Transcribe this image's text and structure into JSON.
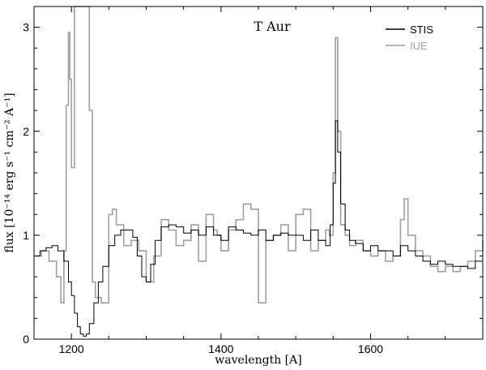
{
  "chart_data": {
    "type": "line",
    "title": "T Aur",
    "xlabel": "wavelength [A]",
    "ylabel": "flux [10⁻¹⁴ erg s⁻¹ cm⁻² A⁻¹]",
    "xlim": [
      1150,
      1750
    ],
    "ylim": [
      0,
      3.2
    ],
    "x_ticks": [
      1200,
      1400,
      1600
    ],
    "y_ticks": [
      0,
      1,
      2,
      3
    ],
    "legend_position": "top-right",
    "grid": false,
    "step": true,
    "series": [
      {
        "name": "STIS",
        "color": "#000000",
        "x": [
          1150,
          1158,
          1166,
          1174,
          1182,
          1190,
          1196,
          1200,
          1204,
          1208,
          1212,
          1216,
          1220,
          1224,
          1230,
          1236,
          1242,
          1250,
          1258,
          1266,
          1274,
          1282,
          1288,
          1294,
          1300,
          1306,
          1312,
          1320,
          1330,
          1340,
          1350,
          1360,
          1370,
          1380,
          1390,
          1400,
          1410,
          1420,
          1430,
          1440,
          1450,
          1460,
          1470,
          1480,
          1490,
          1500,
          1510,
          1520,
          1530,
          1540,
          1546,
          1550,
          1553,
          1556,
          1560,
          1566,
          1572,
          1580,
          1590,
          1600,
          1610,
          1620,
          1630,
          1640,
          1650,
          1660,
          1670,
          1680,
          1690,
          1700,
          1710,
          1720,
          1730,
          1740,
          1750
        ],
        "y": [
          0.8,
          0.85,
          0.88,
          0.9,
          0.85,
          0.75,
          0.55,
          0.42,
          0.25,
          0.12,
          0.05,
          0.03,
          0.05,
          0.15,
          0.35,
          0.55,
          0.7,
          0.9,
          1.0,
          1.05,
          1.05,
          0.98,
          0.8,
          0.6,
          0.55,
          0.72,
          0.95,
          1.08,
          1.1,
          1.08,
          1.02,
          1.05,
          1.0,
          1.08,
          1.0,
          0.95,
          1.08,
          1.05,
          1.02,
          1.0,
          1.05,
          0.95,
          1.0,
          1.02,
          1.0,
          1.0,
          0.95,
          1.05,
          0.95,
          0.9,
          1.1,
          1.5,
          2.1,
          1.8,
          1.3,
          1.05,
          0.95,
          0.92,
          0.85,
          0.9,
          0.85,
          0.85,
          0.8,
          0.9,
          0.85,
          0.8,
          0.75,
          0.72,
          0.75,
          0.72,
          0.7,
          0.7,
          0.68,
          0.75,
          0.8
        ]
      },
      {
        "name": "IUE",
        "color": "#a0a0a0",
        "x": [
          1150,
          1160,
          1170,
          1180,
          1186,
          1190,
          1193,
          1196,
          1198,
          1200,
          1204,
          1208,
          1212,
          1216,
          1220,
          1224,
          1228,
          1232,
          1240,
          1250,
          1255,
          1260,
          1270,
          1280,
          1290,
          1300,
          1310,
          1320,
          1330,
          1340,
          1350,
          1360,
          1370,
          1380,
          1390,
          1395,
          1400,
          1410,
          1420,
          1430,
          1440,
          1450,
          1460,
          1470,
          1480,
          1490,
          1500,
          1510,
          1520,
          1530,
          1540,
          1545,
          1550,
          1553,
          1556,
          1560,
          1566,
          1572,
          1580,
          1590,
          1600,
          1610,
          1620,
          1630,
          1640,
          1645,
          1650,
          1660,
          1670,
          1680,
          1690,
          1700,
          1710,
          1720,
          1730,
          1740,
          1750
        ],
        "y": [
          0.8,
          0.85,
          0.75,
          0.6,
          0.35,
          0.85,
          2.25,
          2.95,
          2.5,
          1.65,
          3.3,
          3.3,
          3.3,
          3.3,
          3.3,
          2.2,
          0.55,
          0.4,
          0.35,
          1.2,
          1.25,
          1.1,
          0.9,
          0.95,
          0.85,
          0.55,
          0.8,
          1.15,
          1.05,
          0.9,
          0.95,
          1.1,
          0.75,
          1.2,
          1.05,
          1.0,
          0.85,
          1.05,
          1.15,
          1.3,
          1.25,
          0.35,
          0.95,
          1.0,
          1.1,
          0.85,
          1.2,
          1.25,
          0.85,
          0.95,
          1.05,
          1.0,
          1.6,
          2.9,
          2.0,
          1.1,
          1.0,
          0.9,
          0.95,
          0.85,
          0.8,
          0.85,
          0.75,
          0.8,
          1.15,
          1.35,
          1.0,
          0.85,
          0.8,
          0.7,
          0.65,
          0.7,
          0.65,
          0.7,
          0.75,
          0.85,
          0.95
        ]
      }
    ]
  }
}
